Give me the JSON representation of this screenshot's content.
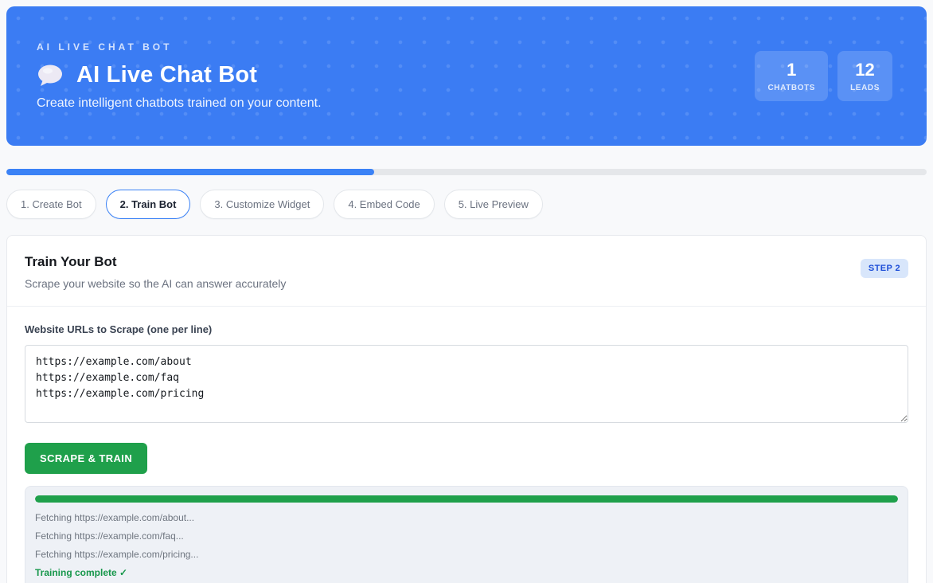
{
  "colors": {
    "banner": "#3b7cf3",
    "accent": "#3b82f6",
    "green": "#1fa04b",
    "green_dark": "#17974b",
    "badge_bg": "#d8e6fb",
    "badge_text": "#1d4ed8"
  },
  "banner": {
    "eyebrow": "AI LIVE CHAT BOT",
    "title": "AI Live Chat Bot",
    "subtitle": "Create intelligent chatbots trained on your content.",
    "icon": "speech-balloon-icon",
    "stats": [
      {
        "value": "1",
        "label": "CHATBOTS"
      },
      {
        "value": "12",
        "label": "LEADS"
      }
    ]
  },
  "progress": {
    "percent": 40
  },
  "steps": [
    {
      "label": "1. Create Bot",
      "active": false
    },
    {
      "label": "2. Train Bot",
      "active": true
    },
    {
      "label": "3. Customize Widget",
      "active": false
    },
    {
      "label": "4. Embed Code",
      "active": false
    },
    {
      "label": "5. Live Preview",
      "active": false
    }
  ],
  "panel": {
    "title": "Train Your Bot",
    "subtitle": "Scrape your website so the AI can answer accurately",
    "step_badge": "STEP 2",
    "form": {
      "label": "Website URLs to Scrape (one per line)",
      "textarea_value": "https://example.com/about\nhttps://example.com/faq\nhttps://example.com/pricing",
      "button_label": "SCRAPE & TRAIN"
    },
    "log": {
      "progress_percent": 100,
      "lines": [
        "Fetching https://example.com/about...",
        "Fetching https://example.com/faq...",
        "Fetching https://example.com/pricing..."
      ],
      "final_line": "Training complete ✓"
    }
  }
}
